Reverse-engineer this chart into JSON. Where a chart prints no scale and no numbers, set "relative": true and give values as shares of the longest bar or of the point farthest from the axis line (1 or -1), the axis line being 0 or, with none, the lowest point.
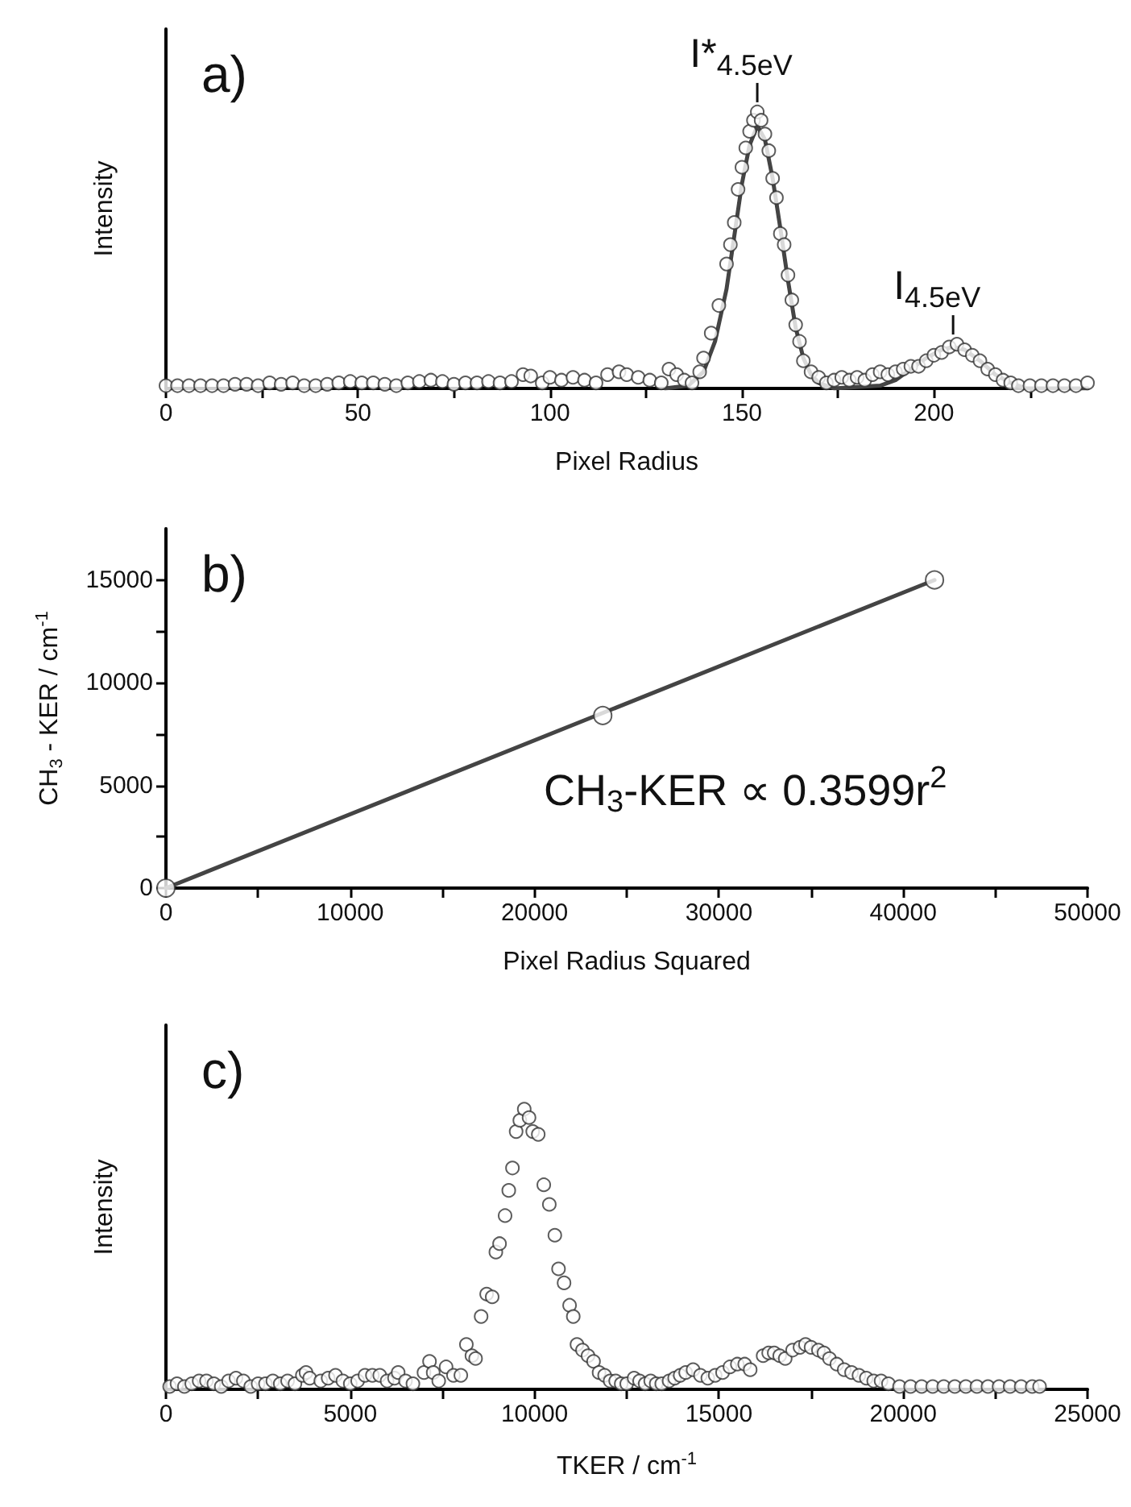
{
  "chart_data": [
    {
      "type": "scatter",
      "relative": true,
      "xlabel": "Pixel Radius",
      "ylabel": "Intensity",
      "xlim": [
        0,
        240
      ],
      "xticks": [
        0,
        {
          "value": 25,
          "label": null
        },
        50,
        {
          "value": 75,
          "label": null
        },
        100,
        {
          "value": 125,
          "label": null
        },
        150,
        {
          "value": 175,
          "label": null
        },
        200,
        {
          "value": 225,
          "label": null
        }
      ],
      "grid": false,
      "marker": "circle",
      "annotations": [
        "a)",
        {
          "text": "I*$_{4.5eV}$",
          "x": 154,
          "y": 1
        },
        {
          "text": "I$_{4.5eV}$",
          "x": 205,
          "y": 0.16
        }
      ],
      "series": [
        {
          "color": "#333333",
          "x": [
            0,
            3,
            6,
            9,
            12,
            15,
            18,
            21,
            24,
            27,
            30,
            33,
            36,
            39,
            42,
            45,
            48,
            51,
            54,
            57,
            60,
            63,
            66,
            69,
            72,
            75,
            78,
            81,
            84,
            87,
            90,
            93,
            95,
            98,
            100,
            103,
            106,
            109,
            112,
            115,
            118,
            120,
            123,
            126,
            129,
            131,
            133,
            135,
            137,
            139,
            140,
            142,
            144,
            146,
            147,
            148,
            149,
            150,
            151,
            152,
            153,
            154,
            155,
            156,
            157,
            158,
            159,
            160,
            161,
            162,
            163,
            164,
            165,
            166,
            168,
            170,
            172,
            174,
            176,
            178,
            180,
            182,
            184,
            186,
            188,
            190,
            192,
            194,
            196,
            198,
            200,
            202,
            204,
            206,
            208,
            210,
            212,
            214,
            216,
            218,
            220,
            222,
            225,
            228,
            231,
            234,
            237,
            240
          ],
          "values": [
            0.01,
            0.01,
            0.01,
            0.01,
            0.01,
            0.01,
            0.015,
            0.015,
            0.01,
            0.02,
            0.015,
            0.02,
            0.01,
            0.01,
            0.015,
            0.02,
            0.025,
            0.02,
            0.02,
            0.015,
            0.01,
            0.02,
            0.025,
            0.03,
            0.025,
            0.015,
            0.02,
            0.02,
            0.025,
            0.02,
            0.025,
            0.05,
            0.045,
            0.02,
            0.04,
            0.03,
            0.04,
            0.03,
            0.02,
            0.05,
            0.06,
            0.05,
            0.04,
            0.03,
            0.02,
            0.07,
            0.05,
            0.03,
            0.02,
            0.06,
            0.11,
            0.2,
            0.3,
            0.45,
            0.52,
            0.6,
            0.72,
            0.8,
            0.87,
            0.93,
            0.97,
            1,
            0.97,
            0.92,
            0.86,
            0.76,
            0.69,
            0.56,
            0.52,
            0.41,
            0.32,
            0.23,
            0.17,
            0.1,
            0.06,
            0.04,
            0.02,
            0.03,
            0.04,
            0.03,
            0.04,
            0.03,
            0.05,
            0.06,
            0.05,
            0.06,
            0.07,
            0.08,
            0.08,
            0.1,
            0.12,
            0.13,
            0.15,
            0.16,
            0.14,
            0.12,
            0.1,
            0.07,
            0.05,
            0.03,
            0.02,
            0.01,
            0.01,
            0.01,
            0.01,
            0.01,
            0.01,
            0.02
          ]
        },
        {
          "type": "line",
          "color": "#444444",
          "marker": "none",
          "x": [
            130,
            136,
            140,
            143,
            146,
            148,
            150,
            152,
            154,
            156,
            158,
            160,
            162,
            164,
            166,
            168,
            170,
            174,
            186,
            190,
            194,
            198,
            202,
            205,
            208,
            212,
            216,
            220,
            224,
            240
          ],
          "values": [
            0,
            0.01,
            0.06,
            0.17,
            0.36,
            0.55,
            0.74,
            0.88,
            0.95,
            0.9,
            0.76,
            0.58,
            0.39,
            0.22,
            0.11,
            0.05,
            0.02,
            0,
            0.01,
            0.03,
            0.07,
            0.11,
            0.14,
            0.15,
            0.14,
            0.1,
            0.05,
            0.02,
            0,
            0
          ]
        }
      ]
    },
    {
      "type": "scatter",
      "xlabel": "Pixel Radius Squared",
      "ylabel": "CH$_{3}$ - KER / cm$^{-1}$",
      "xlim": [
        0,
        50000
      ],
      "xticks": [
        0,
        {
          "value": 5000,
          "label": null
        },
        10000,
        {
          "value": 15000,
          "label": null
        },
        20000,
        {
          "value": 25000,
          "label": null
        },
        30000,
        {
          "value": 35000,
          "label": null
        },
        40000,
        {
          "value": 45000,
          "label": null
        },
        50000
      ],
      "ylim": [
        0,
        17500
      ],
      "yticks": [
        0,
        {
          "value": 2500,
          "label": null
        },
        5000,
        {
          "value": 7500,
          "label": null
        },
        10000,
        {
          "value": 12500,
          "label": null
        },
        15000
      ],
      "grid": false,
      "marker": "circle",
      "annotations": [
        "b)",
        "CH$_{3}$-KER ∝ 0.3599r$^{2}$"
      ],
      "series": [
        {
          "color": "#333333",
          "x": [
            0,
            23700,
            41700
          ],
          "values": [
            0,
            8400,
            15000
          ]
        },
        {
          "type": "line",
          "color": "#444444",
          "marker": "none",
          "x": [
            0,
            41700
          ],
          "values": [
            0,
            15000
          ]
        }
      ]
    },
    {
      "type": "scatter",
      "relative": true,
      "xlabel": "TKER / cm$^{-1}$",
      "ylabel": "Intensity",
      "xlim": [
        0,
        25000
      ],
      "xticks": [
        0,
        {
          "value": 2500,
          "label": null
        },
        5000,
        {
          "value": 7500,
          "label": null
        },
        10000,
        {
          "value": 12500,
          "label": null
        },
        15000,
        {
          "value": 17500,
          "label": null
        },
        20000,
        {
          "value": 22500,
          "label": null
        },
        25000
      ],
      "grid": false,
      "marker": "circle",
      "annotations": [
        "c)"
      ],
      "series": [
        {
          "color": "#333333",
          "x": [
            100,
            300,
            500,
            700,
            900,
            1100,
            1300,
            1500,
            1700,
            1900,
            2100,
            2300,
            2500,
            2700,
            2900,
            3100,
            3300,
            3500,
            3700,
            3800,
            3900,
            4200,
            4400,
            4600,
            4800,
            5000,
            5200,
            5400,
            5600,
            5800,
            6000,
            6200,
            6300,
            6500,
            6700,
            7000,
            7150,
            7250,
            7400,
            7600,
            7800,
            8000,
            8150,
            8300,
            8400,
            8550,
            8700,
            8850,
            8950,
            9050,
            9200,
            9300,
            9400,
            9500,
            9600,
            9720,
            9850,
            9950,
            10100,
            10250,
            10400,
            10550,
            10650,
            10800,
            10950,
            11050,
            11150,
            11300,
            11450,
            11600,
            11750,
            11900,
            12050,
            12200,
            12350,
            12500,
            12700,
            12850,
            13000,
            13150,
            13300,
            13450,
            13650,
            13800,
            13950,
            14100,
            14300,
            14500,
            14700,
            14900,
            15100,
            15300,
            15500,
            15700,
            15850,
            16200,
            16350,
            16500,
            16650,
            16800,
            17000,
            17200,
            17350,
            17500,
            17700,
            17850,
            18000,
            18200,
            18400,
            18600,
            18800,
            19000,
            19200,
            19400,
            19600,
            19900,
            20200,
            20500,
            20800,
            21100,
            21400,
            21700,
            22000,
            22300,
            22600,
            22900,
            23200,
            23500,
            23700
          ],
          "values": [
            0.01,
            0.02,
            0.01,
            0.02,
            0.03,
            0.03,
            0.02,
            0.01,
            0.03,
            0.04,
            0.03,
            0.01,
            0.02,
            0.02,
            0.03,
            0.02,
            0.03,
            0.02,
            0.05,
            0.06,
            0.04,
            0.03,
            0.04,
            0.05,
            0.03,
            0.02,
            0.03,
            0.05,
            0.05,
            0.05,
            0.03,
            0.04,
            0.06,
            0.03,
            0.02,
            0.06,
            0.1,
            0.06,
            0.03,
            0.08,
            0.05,
            0.05,
            0.16,
            0.12,
            0.11,
            0.26,
            0.34,
            0.33,
            0.49,
            0.52,
            0.62,
            0.71,
            0.79,
            0.92,
            0.96,
            1,
            0.97,
            0.92,
            0.91,
            0.73,
            0.66,
            0.55,
            0.43,
            0.38,
            0.3,
            0.26,
            0.16,
            0.14,
            0.12,
            0.1,
            0.06,
            0.05,
            0.03,
            0.03,
            0.02,
            0.02,
            0.04,
            0.03,
            0.02,
            0.03,
            0.02,
            0.02,
            0.03,
            0.04,
            0.05,
            0.06,
            0.07,
            0.05,
            0.04,
            0.05,
            0.06,
            0.08,
            0.09,
            0.09,
            0.07,
            0.12,
            0.13,
            0.13,
            0.12,
            0.11,
            0.14,
            0.15,
            0.16,
            0.15,
            0.14,
            0.13,
            0.11,
            0.09,
            0.07,
            0.06,
            0.05,
            0.04,
            0.03,
            0.03,
            0.02,
            0.01,
            0.01,
            0.01,
            0.01,
            0.01,
            0.01,
            0.01,
            0.01,
            0.01,
            0.01,
            0.01,
            0.01,
            0.01,
            0.01
          ]
        }
      ]
    }
  ]
}
